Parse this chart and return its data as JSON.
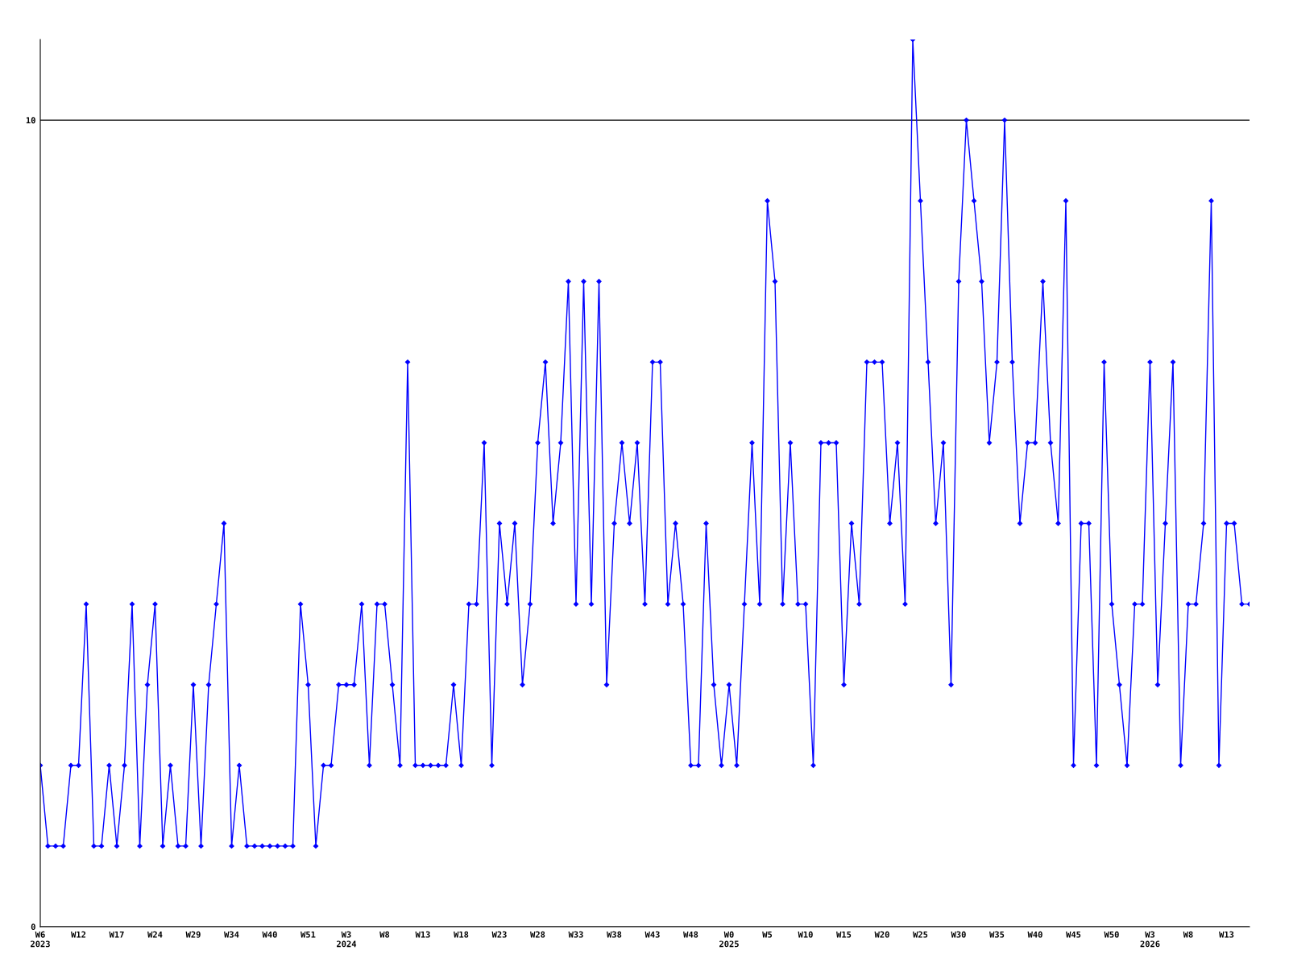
{
  "chart_data": {
    "type": "line",
    "categories": [
      "W6\n2023",
      null,
      null,
      null,
      null,
      "W12",
      null,
      null,
      null,
      null,
      "W17",
      null,
      null,
      null,
      null,
      "W24",
      null,
      null,
      null,
      null,
      "W29",
      null,
      null,
      null,
      null,
      "W34",
      null,
      null,
      null,
      null,
      "W40",
      null,
      null,
      null,
      null,
      "W51",
      null,
      null,
      null,
      null,
      "W3\n2024",
      null,
      null,
      null,
      null,
      "W8",
      null,
      null,
      null,
      null,
      "W13",
      null,
      null,
      null,
      null,
      "W18",
      null,
      null,
      null,
      null,
      "W23",
      null,
      null,
      null,
      null,
      "W28",
      null,
      null,
      null,
      null,
      "W33",
      null,
      null,
      null,
      null,
      "W38",
      null,
      null,
      null,
      null,
      "W43",
      null,
      null,
      null,
      null,
      "W48",
      null,
      null,
      null,
      null,
      "W0\n2025",
      null,
      null,
      null,
      null,
      "W5",
      null,
      null,
      null,
      null,
      "W10",
      null,
      null,
      null,
      null,
      "W15",
      null,
      null,
      null,
      null,
      "W20",
      null,
      null,
      null,
      null,
      "W25",
      null,
      null,
      null,
      null,
      "W30",
      null,
      null,
      null,
      null,
      "W35",
      null,
      null,
      null,
      null,
      "W40",
      null,
      null,
      null,
      null,
      "W45",
      null,
      null,
      null,
      null,
      "W50",
      null,
      null,
      null,
      null,
      "W3\n2026",
      null,
      null,
      null,
      null,
      "W8",
      null,
      null,
      null,
      null,
      "W13",
      null,
      null,
      null
    ],
    "series": [
      {
        "color": "#0000ff",
        "values": [
          2,
          1,
          1,
          1,
          2,
          2,
          4,
          1,
          1,
          2,
          1,
          2,
          4,
          1,
          3,
          4,
          1,
          2,
          1,
          1,
          3,
          1,
          3,
          4,
          5,
          1,
          2,
          1,
          1,
          1,
          1,
          1,
          1,
          1,
          4,
          3,
          1,
          2,
          2,
          3,
          3,
          3,
          4,
          2,
          4,
          4,
          3,
          2,
          7,
          2,
          2,
          2,
          2,
          2,
          3,
          2,
          4,
          4,
          6,
          2,
          5,
          4,
          5,
          3,
          4,
          6,
          7,
          5,
          6,
          8,
          4,
          8,
          4,
          8,
          3,
          5,
          6,
          5,
          6,
          4,
          7,
          7,
          4,
          5,
          4,
          2,
          2,
          5,
          3,
          2,
          3,
          2,
          4,
          6,
          4,
          9,
          8,
          4,
          6,
          4,
          4,
          2,
          6,
          6,
          6,
          3,
          5,
          4,
          7,
          7,
          7,
          5,
          6,
          4,
          11,
          9,
          7,
          5,
          6,
          3,
          8,
          10,
          9,
          8,
          6,
          7,
          10,
          7,
          5,
          6,
          6,
          8,
          6,
          5,
          9,
          2,
          5,
          5,
          2,
          7,
          4,
          3,
          2,
          4,
          4,
          7,
          3,
          5,
          7,
          2,
          4,
          4,
          5,
          9,
          2,
          5,
          5,
          4,
          4
        ]
      }
    ],
    "ylim": [
      0,
      11
    ],
    "yticks": [
      0,
      10
    ],
    "grid": "y",
    "marker": "diamond",
    "line_style": "solid",
    "legend": false
  }
}
